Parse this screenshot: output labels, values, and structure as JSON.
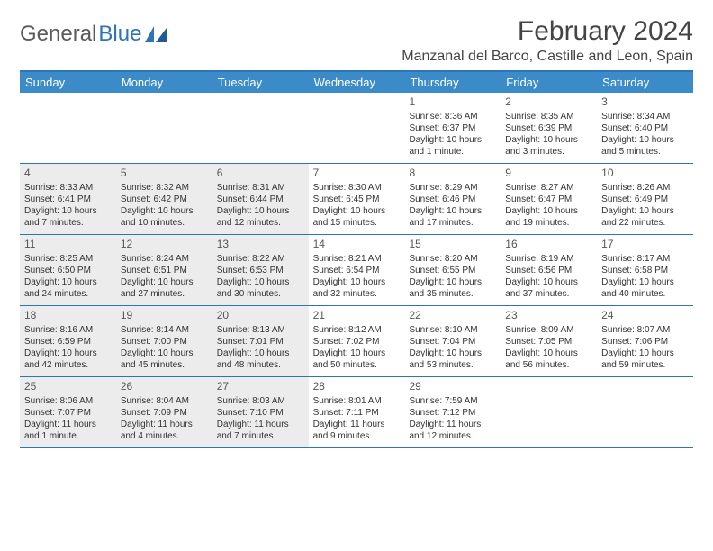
{
  "brand": {
    "part1": "General",
    "part2": "Blue"
  },
  "title": "February 2024",
  "location": "Manzanal del Barco, Castille and Leon, Spain",
  "colors": {
    "header_bar": "#3b8bc8",
    "border": "#2e75b6",
    "shade": "#ececec",
    "text": "#333333",
    "brand_gray": "#5a5a5a",
    "brand_blue": "#2e75b6",
    "background": "#ffffff"
  },
  "dow": [
    "Sunday",
    "Monday",
    "Tuesday",
    "Wednesday",
    "Thursday",
    "Friday",
    "Saturday"
  ],
  "weeks": [
    [
      {
        "n": "",
        "shade": false
      },
      {
        "n": "",
        "shade": false
      },
      {
        "n": "",
        "shade": false
      },
      {
        "n": "",
        "shade": false
      },
      {
        "n": "1",
        "shade": false,
        "sr": "Sunrise: 8:36 AM",
        "ss": "Sunset: 6:37 PM",
        "dl": "Daylight: 10 hours and 1 minute."
      },
      {
        "n": "2",
        "shade": false,
        "sr": "Sunrise: 8:35 AM",
        "ss": "Sunset: 6:39 PM",
        "dl": "Daylight: 10 hours and 3 minutes."
      },
      {
        "n": "3",
        "shade": false,
        "sr": "Sunrise: 8:34 AM",
        "ss": "Sunset: 6:40 PM",
        "dl": "Daylight: 10 hours and 5 minutes."
      }
    ],
    [
      {
        "n": "4",
        "shade": true,
        "sr": "Sunrise: 8:33 AM",
        "ss": "Sunset: 6:41 PM",
        "dl": "Daylight: 10 hours and 7 minutes."
      },
      {
        "n": "5",
        "shade": true,
        "sr": "Sunrise: 8:32 AM",
        "ss": "Sunset: 6:42 PM",
        "dl": "Daylight: 10 hours and 10 minutes."
      },
      {
        "n": "6",
        "shade": true,
        "sr": "Sunrise: 8:31 AM",
        "ss": "Sunset: 6:44 PM",
        "dl": "Daylight: 10 hours and 12 minutes."
      },
      {
        "n": "7",
        "shade": false,
        "sr": "Sunrise: 8:30 AM",
        "ss": "Sunset: 6:45 PM",
        "dl": "Daylight: 10 hours and 15 minutes."
      },
      {
        "n": "8",
        "shade": false,
        "sr": "Sunrise: 8:29 AM",
        "ss": "Sunset: 6:46 PM",
        "dl": "Daylight: 10 hours and 17 minutes."
      },
      {
        "n": "9",
        "shade": false,
        "sr": "Sunrise: 8:27 AM",
        "ss": "Sunset: 6:47 PM",
        "dl": "Daylight: 10 hours and 19 minutes."
      },
      {
        "n": "10",
        "shade": false,
        "sr": "Sunrise: 8:26 AM",
        "ss": "Sunset: 6:49 PM",
        "dl": "Daylight: 10 hours and 22 minutes."
      }
    ],
    [
      {
        "n": "11",
        "shade": true,
        "sr": "Sunrise: 8:25 AM",
        "ss": "Sunset: 6:50 PM",
        "dl": "Daylight: 10 hours and 24 minutes."
      },
      {
        "n": "12",
        "shade": true,
        "sr": "Sunrise: 8:24 AM",
        "ss": "Sunset: 6:51 PM",
        "dl": "Daylight: 10 hours and 27 minutes."
      },
      {
        "n": "13",
        "shade": true,
        "sr": "Sunrise: 8:22 AM",
        "ss": "Sunset: 6:53 PM",
        "dl": "Daylight: 10 hours and 30 minutes."
      },
      {
        "n": "14",
        "shade": false,
        "sr": "Sunrise: 8:21 AM",
        "ss": "Sunset: 6:54 PM",
        "dl": "Daylight: 10 hours and 32 minutes."
      },
      {
        "n": "15",
        "shade": false,
        "sr": "Sunrise: 8:20 AM",
        "ss": "Sunset: 6:55 PM",
        "dl": "Daylight: 10 hours and 35 minutes."
      },
      {
        "n": "16",
        "shade": false,
        "sr": "Sunrise: 8:19 AM",
        "ss": "Sunset: 6:56 PM",
        "dl": "Daylight: 10 hours and 37 minutes."
      },
      {
        "n": "17",
        "shade": false,
        "sr": "Sunrise: 8:17 AM",
        "ss": "Sunset: 6:58 PM",
        "dl": "Daylight: 10 hours and 40 minutes."
      }
    ],
    [
      {
        "n": "18",
        "shade": true,
        "sr": "Sunrise: 8:16 AM",
        "ss": "Sunset: 6:59 PM",
        "dl": "Daylight: 10 hours and 42 minutes."
      },
      {
        "n": "19",
        "shade": true,
        "sr": "Sunrise: 8:14 AM",
        "ss": "Sunset: 7:00 PM",
        "dl": "Daylight: 10 hours and 45 minutes."
      },
      {
        "n": "20",
        "shade": true,
        "sr": "Sunrise: 8:13 AM",
        "ss": "Sunset: 7:01 PM",
        "dl": "Daylight: 10 hours and 48 minutes."
      },
      {
        "n": "21",
        "shade": false,
        "sr": "Sunrise: 8:12 AM",
        "ss": "Sunset: 7:02 PM",
        "dl": "Daylight: 10 hours and 50 minutes."
      },
      {
        "n": "22",
        "shade": false,
        "sr": "Sunrise: 8:10 AM",
        "ss": "Sunset: 7:04 PM",
        "dl": "Daylight: 10 hours and 53 minutes."
      },
      {
        "n": "23",
        "shade": false,
        "sr": "Sunrise: 8:09 AM",
        "ss": "Sunset: 7:05 PM",
        "dl": "Daylight: 10 hours and 56 minutes."
      },
      {
        "n": "24",
        "shade": false,
        "sr": "Sunrise: 8:07 AM",
        "ss": "Sunset: 7:06 PM",
        "dl": "Daylight: 10 hours and 59 minutes."
      }
    ],
    [
      {
        "n": "25",
        "shade": true,
        "sr": "Sunrise: 8:06 AM",
        "ss": "Sunset: 7:07 PM",
        "dl": "Daylight: 11 hours and 1 minute."
      },
      {
        "n": "26",
        "shade": true,
        "sr": "Sunrise: 8:04 AM",
        "ss": "Sunset: 7:09 PM",
        "dl": "Daylight: 11 hours and 4 minutes."
      },
      {
        "n": "27",
        "shade": true,
        "sr": "Sunrise: 8:03 AM",
        "ss": "Sunset: 7:10 PM",
        "dl": "Daylight: 11 hours and 7 minutes."
      },
      {
        "n": "28",
        "shade": false,
        "sr": "Sunrise: 8:01 AM",
        "ss": "Sunset: 7:11 PM",
        "dl": "Daylight: 11 hours and 9 minutes."
      },
      {
        "n": "29",
        "shade": false,
        "sr": "Sunrise: 7:59 AM",
        "ss": "Sunset: 7:12 PM",
        "dl": "Daylight: 11 hours and 12 minutes."
      },
      {
        "n": "",
        "shade": false
      },
      {
        "n": "",
        "shade": false
      }
    ]
  ]
}
